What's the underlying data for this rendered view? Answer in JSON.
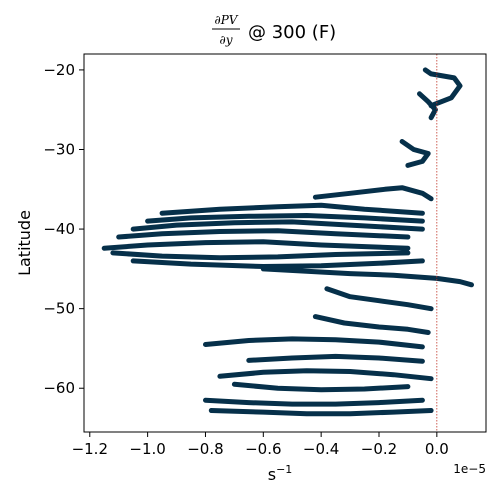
{
  "chart_data": {
    "type": "line",
    "title": {
      "frac_numerator": "∂PV",
      "frac_denominator": "∂y",
      "suffix": "@ 300 (F)"
    },
    "xlabel": "s",
    "xlabel_exponent": "−1",
    "ylabel": "Latitude",
    "x_offset_label": "1e−5",
    "x_scale": 1e-05,
    "xlim": [
      -1.22,
      0.17
    ],
    "ylim": [
      -65.5,
      -18
    ],
    "x_ticks": [
      -1.2,
      -1.0,
      -0.8,
      -0.6,
      -0.4,
      -0.2,
      0.0
    ],
    "x_tick_labels": [
      "−1.2",
      "−1.0",
      "−0.8",
      "−0.6",
      "−0.4",
      "−0.2",
      "0.0"
    ],
    "y_ticks": [
      -60,
      -50,
      -40,
      -30,
      -20
    ],
    "y_tick_labels": [
      "−60",
      "−50",
      "−40",
      "−30",
      "−20"
    ],
    "reference_line": {
      "x": 0.0,
      "color": "#c0392b",
      "style": "dotted"
    },
    "series_color": "#06304a",
    "series": [
      {
        "x": [
          -0.04,
          -0.02,
          0.06,
          0.08,
          0.05,
          -0.02
        ],
        "y": [
          -20.0,
          -20.5,
          -21.0,
          -22.0,
          -23.5,
          -24.5
        ]
      },
      {
        "x": [
          -0.06,
          -0.03,
          -0.005,
          -0.02
        ],
        "y": [
          -23.0,
          -24.0,
          -25.0,
          -26.0
        ]
      },
      {
        "x": [
          -0.12,
          -0.08,
          -0.03,
          -0.05,
          -0.1
        ],
        "y": [
          -29.0,
          -30.0,
          -30.5,
          -31.5,
          -32.0
        ]
      },
      {
        "x": [
          -0.42,
          -0.3,
          -0.18,
          -0.12,
          -0.05,
          -0.02
        ],
        "y": [
          -36.0,
          -35.5,
          -35.0,
          -34.8,
          -35.5,
          -36.2
        ]
      },
      {
        "x": [
          -0.95,
          -0.75,
          -0.55,
          -0.4,
          -0.25,
          -0.05
        ],
        "y": [
          -38.0,
          -37.5,
          -37.2,
          -37.0,
          -37.5,
          -38.0
        ]
      },
      {
        "x": [
          -1.0,
          -0.85,
          -0.65,
          -0.45,
          -0.25,
          -0.05
        ],
        "y": [
          -39.0,
          -38.6,
          -38.4,
          -38.3,
          -38.6,
          -39.0
        ]
      },
      {
        "x": [
          -1.05,
          -0.9,
          -0.7,
          -0.5,
          -0.3,
          -0.05
        ],
        "y": [
          -40.0,
          -39.5,
          -39.2,
          -39.1,
          -39.5,
          -40.0
        ]
      },
      {
        "x": [
          -1.1,
          -0.95,
          -0.75,
          -0.55,
          -0.35,
          -0.1
        ],
        "y": [
          -41.0,
          -40.6,
          -40.3,
          -40.2,
          -40.6,
          -41.0
        ]
      },
      {
        "x": [
          -1.15,
          -1.0,
          -0.8,
          -0.6,
          -0.4,
          -0.1
        ],
        "y": [
          -42.4,
          -42.0,
          -41.7,
          -41.6,
          -42.0,
          -42.4
        ]
      },
      {
        "x": [
          -1.12,
          -0.95,
          -0.75,
          -0.55,
          -0.35,
          -0.1
        ],
        "y": [
          -43.0,
          -43.4,
          -43.6,
          -43.5,
          -43.2,
          -43.0
        ]
      },
      {
        "x": [
          -1.05,
          -0.85,
          -0.6,
          -0.4,
          -0.2,
          -0.05
        ],
        "y": [
          -44.0,
          -44.4,
          -44.7,
          -44.6,
          -44.3,
          -44.0
        ]
      },
      {
        "x": [
          -0.6,
          -0.45,
          -0.3,
          -0.15,
          0.0,
          0.08,
          0.12
        ],
        "y": [
          -45.0,
          -45.3,
          -45.6,
          -45.8,
          -46.2,
          -46.6,
          -47.0
        ]
      },
      {
        "x": [
          -0.38,
          -0.3,
          -0.2,
          -0.1,
          -0.02
        ],
        "y": [
          -47.5,
          -48.5,
          -49.0,
          -49.5,
          -50.0
        ]
      },
      {
        "x": [
          -0.42,
          -0.32,
          -0.2,
          -0.1,
          -0.03
        ],
        "y": [
          -51.0,
          -51.8,
          -52.3,
          -52.6,
          -53.0
        ]
      },
      {
        "x": [
          -0.8,
          -0.65,
          -0.5,
          -0.35,
          -0.2,
          -0.05
        ],
        "y": [
          -54.5,
          -54.0,
          -53.8,
          -53.9,
          -54.2,
          -54.8
        ]
      },
      {
        "x": [
          -0.65,
          -0.5,
          -0.35,
          -0.2,
          -0.05
        ],
        "y": [
          -56.5,
          -56.2,
          -56.0,
          -56.2,
          -56.6
        ]
      },
      {
        "x": [
          -0.75,
          -0.6,
          -0.45,
          -0.3,
          -0.15,
          -0.02
        ],
        "y": [
          -58.5,
          -58.0,
          -57.8,
          -57.9,
          -58.3,
          -58.8
        ]
      },
      {
        "x": [
          -0.7,
          -0.55,
          -0.4,
          -0.25,
          -0.1
        ],
        "y": [
          -59.5,
          -60.0,
          -60.2,
          -60.1,
          -59.8
        ]
      },
      {
        "x": [
          -0.8,
          -0.65,
          -0.5,
          -0.35,
          -0.2,
          -0.05
        ],
        "y": [
          -61.5,
          -61.8,
          -62.0,
          -62.0,
          -61.8,
          -61.5
        ]
      },
      {
        "x": [
          -0.78,
          -0.6,
          -0.45,
          -0.3,
          -0.15,
          -0.02
        ],
        "y": [
          -62.8,
          -63.0,
          -63.2,
          -63.2,
          -63.0,
          -62.8
        ]
      }
    ]
  }
}
